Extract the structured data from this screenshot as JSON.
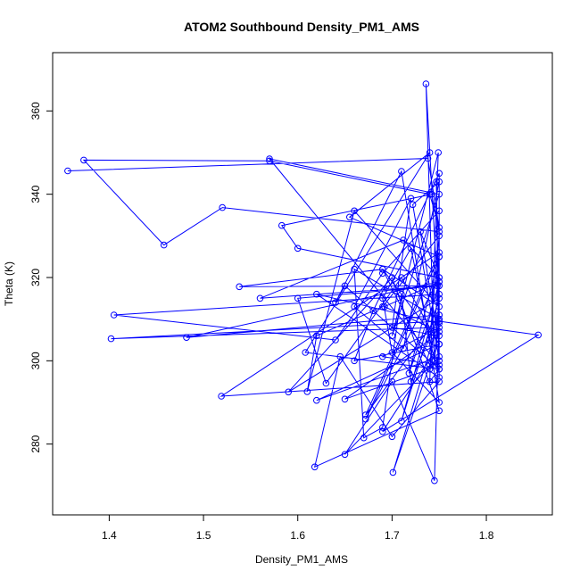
{
  "chart_data": {
    "type": "scatter",
    "title": "ATOM2 Southbound Density_PM1_AMS",
    "xlabel": "Density_PM1_AMS",
    "ylabel": "Theta (K)",
    "xlim": [
      1.34,
      1.87
    ],
    "ylim": [
      263,
      374
    ],
    "xticks": [
      "1.4",
      "1.5",
      "1.6",
      "1.7",
      "1.8"
    ],
    "yticks": [
      "280",
      "300",
      "320",
      "340",
      "360"
    ],
    "grid": false,
    "legend": "none",
    "series": [
      {
        "color": "#0000ff",
        "marker": "open-circle",
        "connected": true,
        "x": [
          1.356,
          1.738,
          1.75,
          1.74,
          1.57,
          1.373,
          1.458,
          1.52,
          1.75,
          1.742,
          1.583,
          1.6,
          1.75,
          1.712,
          1.56,
          1.748,
          1.75,
          1.655,
          1.74,
          1.608,
          1.75,
          1.65,
          1.64,
          1.71,
          1.75,
          1.7,
          1.69,
          1.72,
          1.745,
          1.75,
          1.736,
          1.745,
          1.75,
          1.405,
          1.64,
          1.69,
          1.75,
          1.75,
          1.722,
          1.75,
          1.712,
          1.66,
          1.72,
          1.7,
          1.75,
          1.75,
          1.538,
          1.69,
          1.75,
          1.66,
          1.61,
          1.62,
          1.69,
          1.75,
          1.74,
          1.65,
          1.74,
          1.75,
          1.692,
          1.75,
          1.747,
          1.75,
          1.62,
          1.75,
          1.75,
          1.68,
          1.66,
          1.75,
          1.71,
          1.63,
          1.6,
          1.75,
          1.718,
          1.75,
          1.672,
          1.75,
          1.73,
          1.75,
          1.69,
          1.74,
          1.701,
          1.75,
          1.66,
          1.67,
          1.69,
          1.71,
          1.72,
          1.75,
          1.482,
          1.75,
          1.71,
          1.75,
          1.59,
          1.7,
          1.75,
          1.618,
          1.645,
          1.7,
          1.75,
          1.519,
          1.75,
          1.672,
          1.75,
          1.745,
          1.7,
          1.65,
          1.75,
          1.62,
          1.75,
          1.69,
          1.855,
          1.75,
          1.402,
          1.75,
          1.69,
          1.75,
          1.57,
          1.75,
          1.7,
          1.749,
          1.74,
          1.75
        ],
        "y": [
          345.6,
          348.6,
          332.0,
          340.0,
          348.0,
          348.2,
          327.8,
          336.8,
          331.0,
          340.0,
          332.5,
          327.0,
          320.0,
          329.0,
          315.0,
          318.0,
          325.0,
          334.5,
          350.0,
          302.0,
          298.0,
          318.0,
          314.0,
          345.5,
          290.0,
          302.0,
          315.0,
          327.0,
          300.0,
          310.0,
          366.5,
          299.0,
          316.0,
          311.0,
          305.0,
          321.0,
          336.0,
          300.0,
          337.5,
          343.0,
          303.0,
          313.0,
          339.0,
          308.0,
          306.0,
          318.0,
          317.8,
          322.0,
          313.0,
          336.0,
          292.6,
          306.0,
          313.0,
          330.0,
          305.0,
          290.8,
          298.0,
          319.0,
          313.0,
          307.0,
          343.0,
          296.0,
          316.0,
          309.0,
          345.0,
          312.0,
          300.0,
          304.0,
          320.0,
          294.6,
          315.0,
          318.0,
          297.0,
          325.0,
          286.0,
          320.0,
          331.0,
          304.0,
          322.0,
          299.0,
          273.2,
          310.0,
          322.0,
          281.5,
          284.0,
          316.0,
          295.0,
          311.0,
          305.6,
          319.0,
          285.5,
          315.0,
          292.5,
          320.0,
          288.0,
          274.5,
          301.0,
          281.8,
          295.0,
          291.5,
          326.0,
          287.0,
          311.0,
          271.2,
          295.0,
          277.5,
          301.0,
          290.5,
          304.0,
          283.0,
          306.2,
          309.5,
          305.3,
          308.0,
          301.0,
          299.0,
          348.5,
          340.0,
          306.0,
          350.0,
          295.0,
          298.0
        ]
      }
    ]
  }
}
